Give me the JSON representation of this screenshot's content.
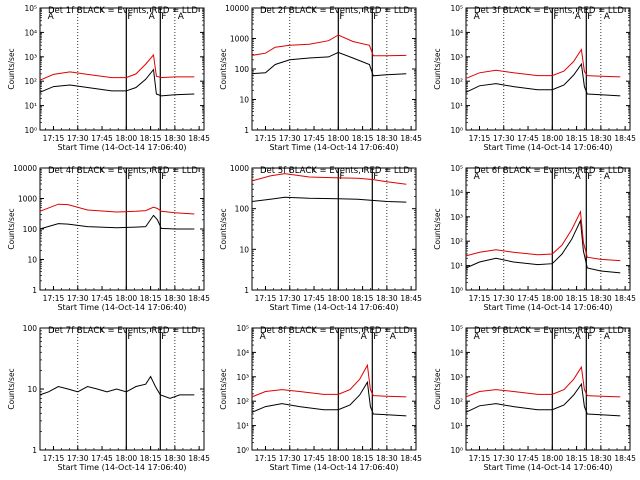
{
  "x_tick_labels": [
    "17:15",
    "17:30",
    "17:45",
    "18:00",
    "18:15",
    "18:30",
    "18:45"
  ],
  "x_axis_label": "Start Time (14-Oct-14 17:06:40)",
  "y_axis_label": "Counts/sec",
  "flag_labels": {
    "a": "A",
    "f": "F"
  },
  "colors": {
    "events": "#000000",
    "lld": "#e00000"
  },
  "chart_data": [
    {
      "type": "line",
      "title": "Det 1f BLACK = Events, RED = LLD",
      "ylim": [
        1,
        100000
      ],
      "log": true,
      "ytick_labels": [
        "10⁰",
        "10¹",
        "10²",
        "10³",
        "10⁴",
        "10⁵"
      ],
      "flags": {
        "a_times": [
          17.18,
          18.22,
          18.52
        ],
        "f_times": [
          18.0,
          18.35
        ]
      },
      "series": [
        {
          "name": "Events",
          "x": [
            17.11,
            17.25,
            17.42,
            17.6,
            17.85,
            18.0,
            18.1,
            18.2,
            18.28,
            18.31,
            18.36,
            18.5,
            18.7
          ],
          "values": [
            35,
            60,
            70,
            55,
            40,
            40,
            55,
            120,
            300,
            30,
            25,
            28,
            30
          ]
        },
        {
          "name": "LLD",
          "x": [
            17.11,
            17.25,
            17.42,
            17.6,
            17.85,
            18.0,
            18.1,
            18.2,
            18.28,
            18.31,
            18.36,
            18.5,
            18.7
          ],
          "values": [
            110,
            190,
            240,
            190,
            140,
            140,
            200,
            500,
            1200,
            160,
            140,
            150,
            150
          ]
        }
      ]
    },
    {
      "type": "line",
      "title": "Det 2f BLACK = Events, RED = LLD",
      "ylim": [
        1,
        10000
      ],
      "log": true,
      "ytick_labels": [
        "1",
        "10",
        "100",
        "1000",
        "10000"
      ],
      "flags": {
        "a_times": [],
        "f_times": [
          18.0,
          18.35
        ]
      },
      "series": [
        {
          "name": "Events",
          "x": [
            17.11,
            17.25,
            17.35,
            17.5,
            17.7,
            17.9,
            18.0,
            18.15,
            18.32,
            18.36,
            18.5,
            18.7
          ],
          "values": [
            70,
            75,
            140,
            200,
            230,
            250,
            350,
            230,
            140,
            60,
            65,
            70
          ]
        },
        {
          "name": "LLD",
          "x": [
            17.11,
            17.25,
            17.35,
            17.5,
            17.7,
            17.9,
            18.0,
            18.15,
            18.32,
            18.36,
            18.5,
            18.7
          ],
          "values": [
            280,
            330,
            520,
            600,
            650,
            850,
            1300,
            800,
            600,
            270,
            270,
            280
          ]
        }
      ]
    },
    {
      "type": "line",
      "title": "Det 3f BLACK = Events, RED = LLD",
      "ylim": [
        1,
        100000
      ],
      "log": true,
      "ytick_labels": [
        "10⁰",
        "10¹",
        "10²",
        "10³",
        "10⁴",
        "10⁵"
      ],
      "flags": {
        "a_times": [
          17.18,
          18.22,
          18.52
        ],
        "f_times": [
          18.0,
          18.35
        ]
      },
      "series": [
        {
          "name": "Events",
          "x": [
            17.11,
            17.25,
            17.42,
            17.6,
            17.85,
            18.0,
            18.12,
            18.22,
            18.3,
            18.33,
            18.36,
            18.5,
            18.7
          ],
          "values": [
            35,
            65,
            80,
            60,
            45,
            45,
            70,
            180,
            500,
            60,
            30,
            28,
            25
          ]
        },
        {
          "name": "LLD",
          "x": [
            17.11,
            17.25,
            17.42,
            17.6,
            17.85,
            18.0,
            18.12,
            18.22,
            18.3,
            18.33,
            18.36,
            18.5,
            18.7
          ],
          "values": [
            130,
            220,
            280,
            220,
            170,
            170,
            260,
            650,
            2000,
            250,
            170,
            160,
            150
          ]
        }
      ]
    },
    {
      "type": "line",
      "title": "Det 4f BLACK = Events, RED = LLD",
      "ylim": [
        1,
        10000
      ],
      "log": true,
      "ytick_labels": [
        "1",
        "10",
        "100",
        "1000",
        "10000"
      ],
      "flags": {
        "a_times": [],
        "f_times": [
          18.0,
          18.35
        ]
      },
      "series": [
        {
          "name": "Events",
          "x": [
            17.11,
            17.3,
            17.4,
            17.6,
            17.9,
            18.1,
            18.2,
            18.28,
            18.32,
            18.36,
            18.5,
            18.7
          ],
          "values": [
            100,
            150,
            145,
            120,
            110,
            115,
            120,
            280,
            200,
            105,
            100,
            100
          ]
        },
        {
          "name": "LLD",
          "x": [
            17.11,
            17.3,
            17.4,
            17.6,
            17.9,
            18.1,
            18.2,
            18.28,
            18.32,
            18.36,
            18.5,
            18.7
          ],
          "values": [
            380,
            650,
            630,
            420,
            360,
            380,
            400,
            520,
            470,
            380,
            340,
            310
          ]
        }
      ]
    },
    {
      "type": "line",
      "title": "Det 5f BLACK = Events, RED = LLD",
      "ylim": [
        1,
        1000
      ],
      "log": true,
      "ytick_labels": [
        "1",
        "10",
        "100",
        "1000"
      ],
      "flags": {
        "a_times": [],
        "f_times": [
          18.0,
          18.35
        ]
      },
      "series": [
        {
          "name": "Events",
          "x": [
            17.11,
            17.3,
            17.45,
            17.7,
            18.0,
            18.2,
            18.35,
            18.5,
            18.7
          ],
          "values": [
            150,
            170,
            190,
            180,
            175,
            170,
            160,
            150,
            145
          ]
        },
        {
          "name": "LLD",
          "x": [
            17.11,
            17.3,
            17.45,
            17.7,
            18.0,
            18.2,
            18.35,
            18.5,
            18.7
          ],
          "values": [
            480,
            640,
            730,
            600,
            570,
            560,
            520,
            460,
            400
          ]
        }
      ]
    },
    {
      "type": "line",
      "title": "Det 6f BLACK = Events, RED = LLD",
      "ylim": [
        1,
        100000
      ],
      "log": true,
      "ytick_labels": [
        "10⁰",
        "10¹",
        "10²",
        "10³",
        "10⁴",
        "10⁵"
      ],
      "flags": {
        "a_times": [
          17.18,
          18.22,
          18.52
        ],
        "f_times": [
          18.0,
          18.35
        ]
      },
      "series": [
        {
          "name": "Events",
          "x": [
            17.11,
            17.25,
            17.42,
            17.6,
            17.85,
            18.0,
            18.1,
            18.2,
            18.29,
            18.32,
            18.36,
            18.5,
            18.7
          ],
          "values": [
            8,
            14,
            20,
            14,
            11,
            12,
            30,
            120,
            700,
            40,
            8,
            6,
            5
          ]
        },
        {
          "name": "LLD",
          "x": [
            17.11,
            17.25,
            17.42,
            17.6,
            17.85,
            18.0,
            18.1,
            18.2,
            18.29,
            18.32,
            18.36,
            18.5,
            18.7
          ],
          "values": [
            25,
            35,
            45,
            35,
            28,
            30,
            70,
            300,
            1600,
            90,
            22,
            18,
            16
          ]
        }
      ]
    },
    {
      "type": "line",
      "title": "Det 7f BLACK = Events, RED = LLD",
      "ylim": [
        1,
        100
      ],
      "log": true,
      "ytick_labels": [
        "1",
        "10",
        "100"
      ],
      "flags": {
        "a_times": [],
        "f_times": [
          18.0,
          18.35
        ]
      },
      "series": [
        {
          "name": "Events",
          "x": [
            17.11,
            17.2,
            17.3,
            17.4,
            17.5,
            17.6,
            17.7,
            17.8,
            17.9,
            18.0,
            18.1,
            18.2,
            18.25,
            18.3,
            18.35,
            18.45,
            18.55,
            18.7
          ],
          "values": [
            8,
            9,
            11,
            10,
            9,
            11,
            10,
            9,
            10,
            9,
            11,
            12,
            16,
            11,
            8,
            7,
            8,
            8
          ]
        }
      ]
    },
    {
      "type": "line",
      "title": "Det 8f BLACK = Events, RED = LLD",
      "ylim": [
        1,
        100000
      ],
      "log": true,
      "ytick_labels": [
        "10⁰",
        "10¹",
        "10²",
        "10³",
        "10⁴",
        "10⁵"
      ],
      "flags": {
        "a_times": [
          17.18,
          18.22,
          18.52
        ],
        "f_times": [
          18.0,
          18.35
        ]
      },
      "series": [
        {
          "name": "Events",
          "x": [
            17.11,
            17.25,
            17.42,
            17.6,
            17.85,
            18.0,
            18.12,
            18.22,
            18.3,
            18.33,
            18.36,
            18.5,
            18.7
          ],
          "values": [
            35,
            60,
            80,
            60,
            45,
            45,
            70,
            180,
            600,
            60,
            30,
            28,
            25
          ]
        },
        {
          "name": "LLD",
          "x": [
            17.11,
            17.25,
            17.42,
            17.6,
            17.85,
            18.0,
            18.12,
            18.22,
            18.3,
            18.33,
            18.36,
            18.5,
            18.7
          ],
          "values": [
            150,
            250,
            300,
            250,
            190,
            190,
            300,
            800,
            3000,
            300,
            170,
            160,
            150
          ]
        }
      ]
    },
    {
      "type": "line",
      "title": "Det 9f BLACK = Events, RED = LLD",
      "ylim": [
        1,
        100000
      ],
      "log": true,
      "ytick_labels": [
        "10⁰",
        "10¹",
        "10²",
        "10³",
        "10⁴",
        "10⁵"
      ],
      "flags": {
        "a_times": [
          17.18,
          18.22,
          18.52
        ],
        "f_times": [
          18.0,
          18.35
        ]
      },
      "series": [
        {
          "name": "Events",
          "x": [
            17.11,
            17.25,
            17.42,
            17.6,
            17.85,
            18.0,
            18.12,
            18.22,
            18.3,
            18.33,
            18.36,
            18.5,
            18.7
          ],
          "values": [
            35,
            65,
            80,
            60,
            45,
            45,
            70,
            180,
            500,
            60,
            30,
            28,
            25
          ]
        },
        {
          "name": "LLD",
          "x": [
            17.11,
            17.25,
            17.42,
            17.6,
            17.85,
            18.0,
            18.12,
            18.22,
            18.3,
            18.33,
            18.36,
            18.5,
            18.7
          ],
          "values": [
            150,
            250,
            300,
            250,
            190,
            190,
            300,
            800,
            2500,
            300,
            170,
            160,
            150
          ]
        }
      ]
    }
  ]
}
